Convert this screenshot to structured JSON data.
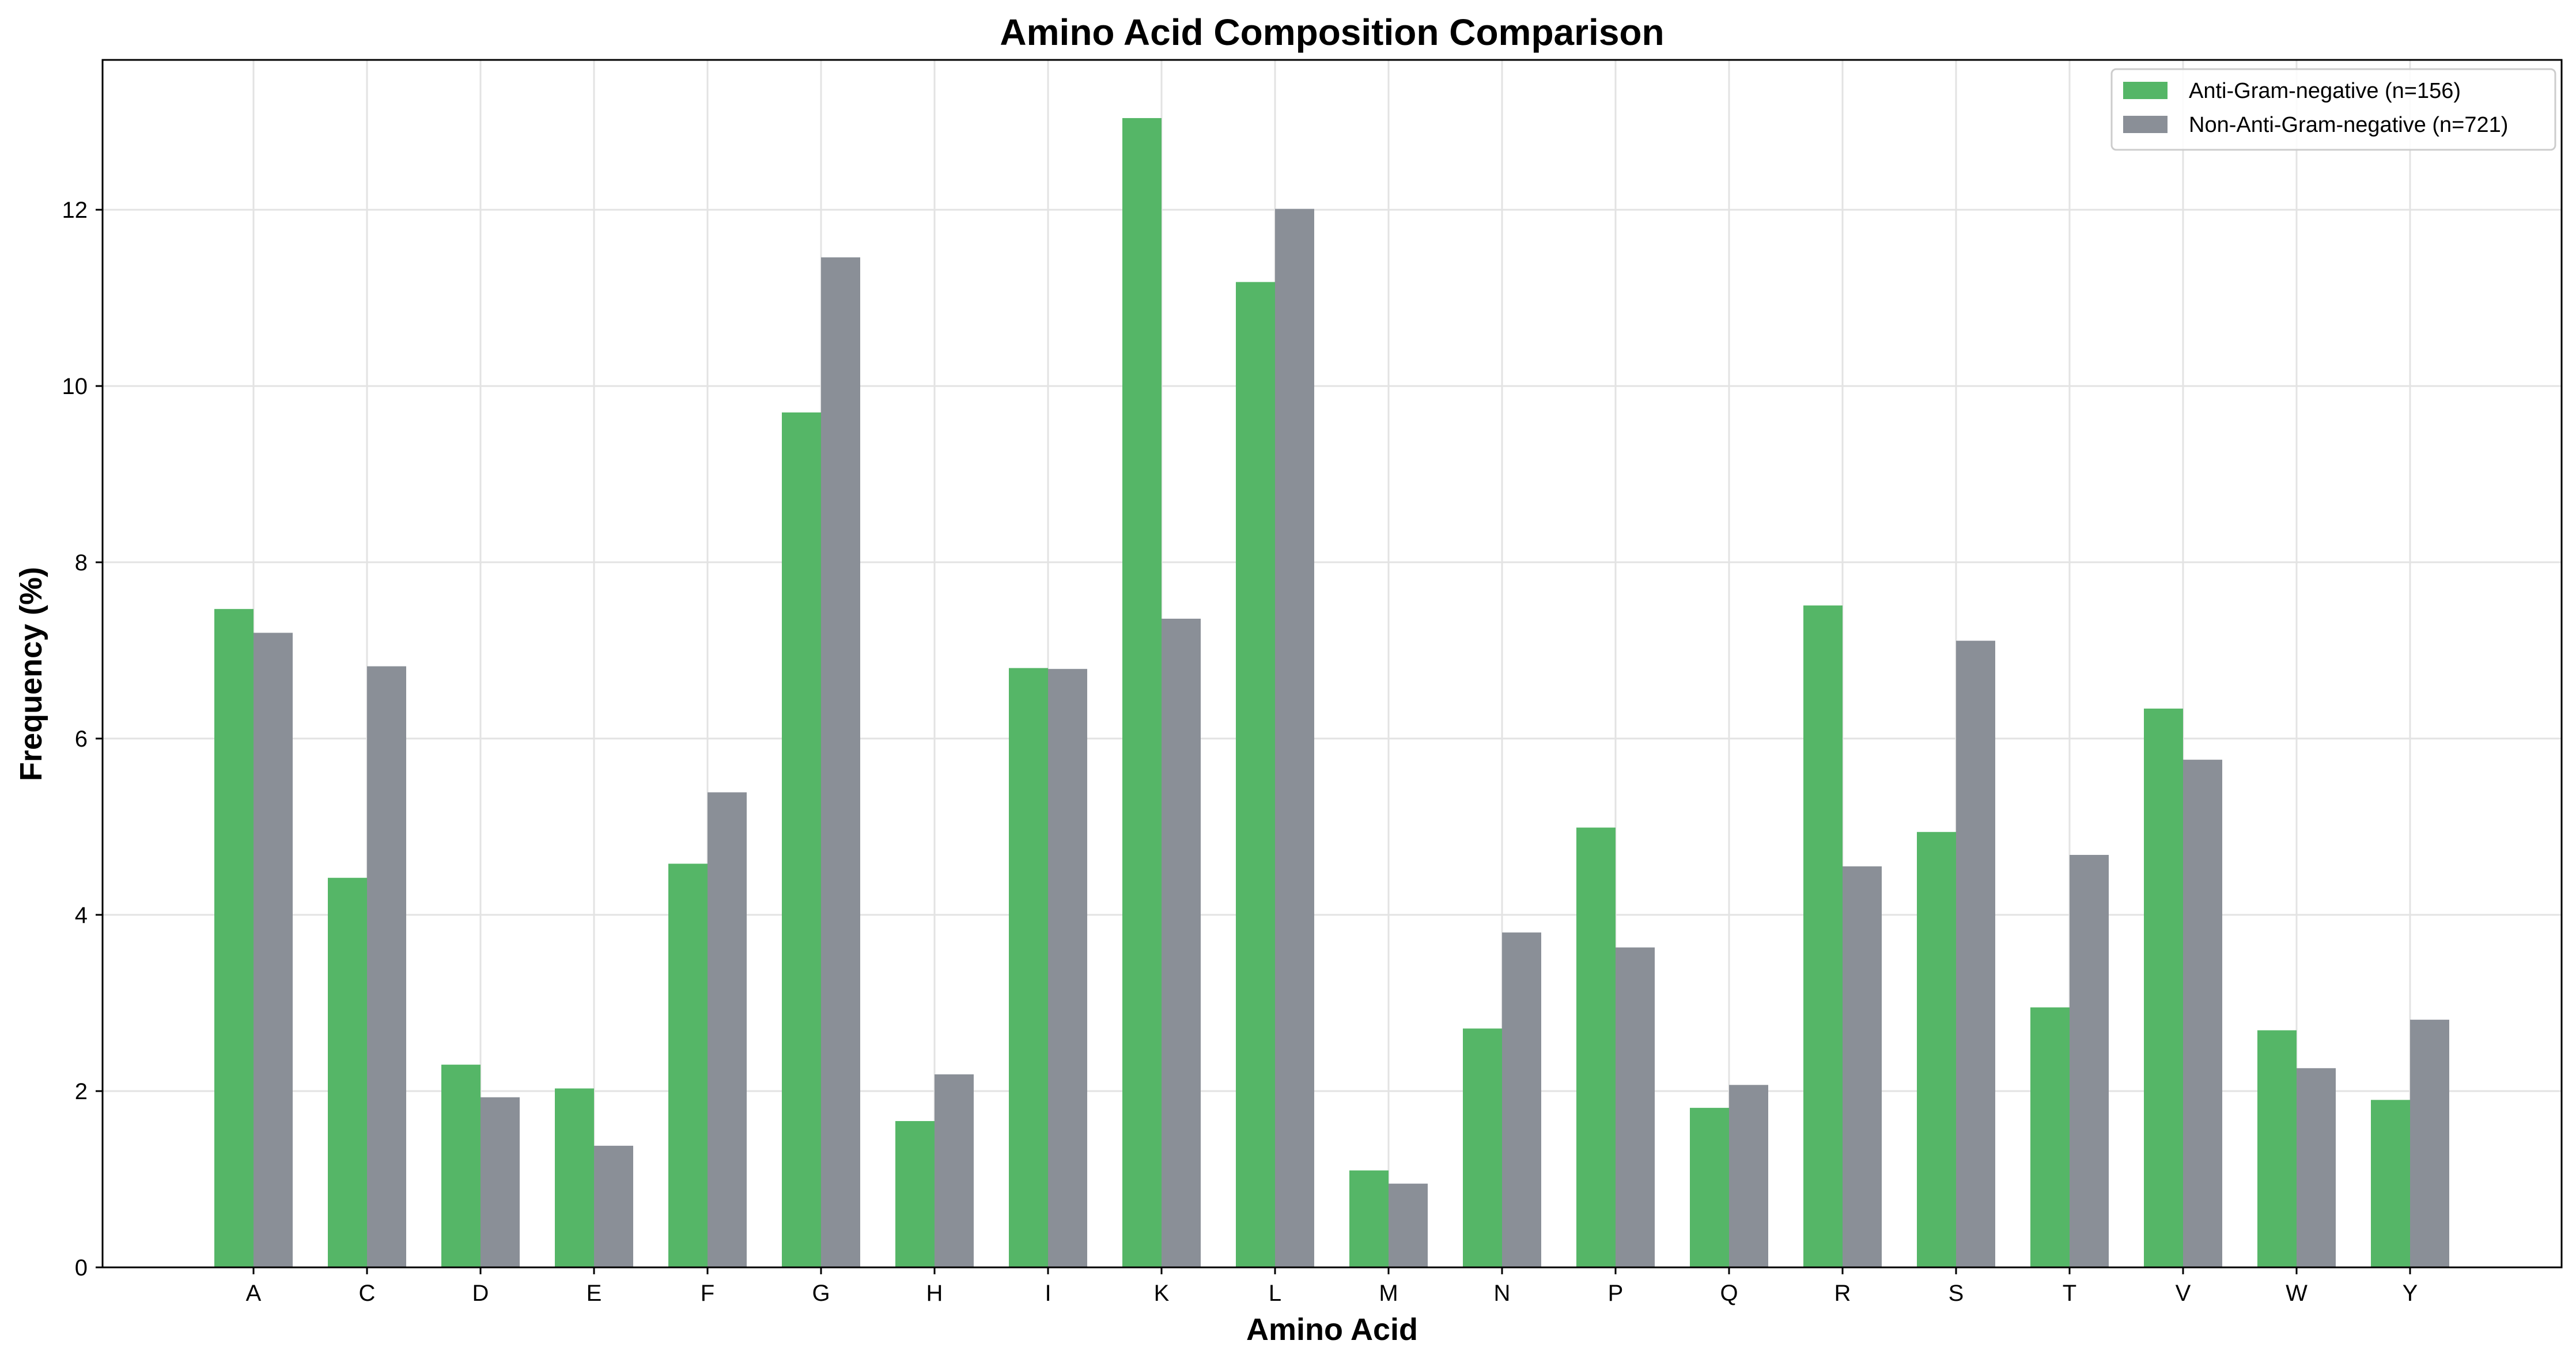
{
  "chart_data": {
    "type": "bar",
    "title": "Amino Acid Composition Comparison",
    "xlabel": "Amino Acid",
    "ylabel": "Frequency (%)",
    "categories": [
      "A",
      "C",
      "D",
      "E",
      "F",
      "G",
      "H",
      "I",
      "K",
      "L",
      "M",
      "N",
      "P",
      "Q",
      "R",
      "S",
      "T",
      "V",
      "W",
      "Y"
    ],
    "series": [
      {
        "name": "Anti-Gram-negative (n=156)",
        "color": "#55b667",
        "values": [
          7.47,
          4.42,
          2.3,
          2.03,
          4.58,
          9.7,
          1.66,
          6.8,
          13.04,
          11.18,
          1.1,
          2.71,
          4.99,
          1.81,
          7.51,
          4.94,
          2.95,
          6.34,
          2.69,
          1.9
        ]
      },
      {
        "name": "Non-Anti-Gram-negative (n=721)",
        "color": "#8a8f97",
        "values": [
          7.2,
          6.82,
          1.93,
          1.38,
          5.39,
          11.46,
          2.19,
          6.79,
          7.36,
          12.01,
          0.95,
          3.8,
          3.63,
          2.07,
          4.55,
          7.11,
          4.68,
          5.76,
          2.26,
          2.81
        ]
      }
    ],
    "ylim": [
      0,
      13.7
    ],
    "yticks": [
      0,
      2,
      4,
      6,
      8,
      10,
      12
    ],
    "grid": true,
    "legend_position": "top-right"
  }
}
